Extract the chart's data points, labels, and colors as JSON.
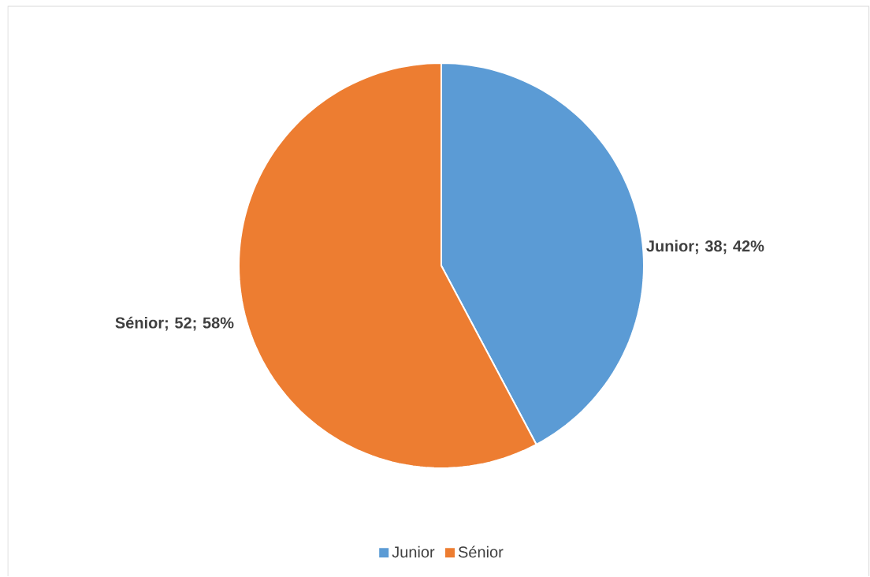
{
  "chart_data": {
    "type": "pie",
    "categories": [
      "Junior",
      "Sénior"
    ],
    "values": [
      38,
      52
    ],
    "colors": [
      "#5b9bd5",
      "#ed7d31"
    ],
    "value_labels": [
      "Junior; 38; 42%",
      "Sénior; 52; 58%"
    ],
    "legend": "bottom"
  }
}
